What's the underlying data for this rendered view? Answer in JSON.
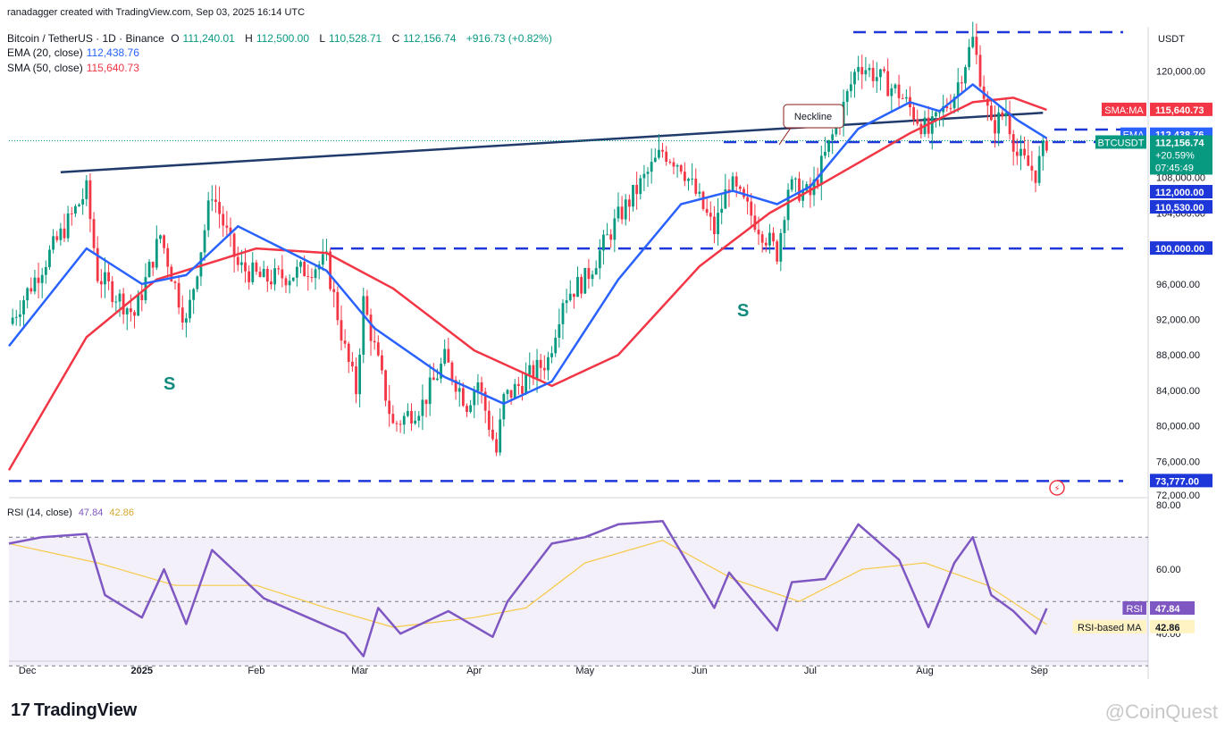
{
  "header": {
    "credit": "ranadagger created with TradingView.com, Sep 03, 2025 16:14 UTC",
    "symbol": "Bitcoin / TetherUS · 1D · Binance",
    "open_label": "O",
    "open": "111,240.01",
    "high_label": "H",
    "high": "112,500.00",
    "low_label": "L",
    "low": "110,528.71",
    "close_label": "C",
    "close": "112,156.74",
    "change": "+916.73 (+0.82%)",
    "ema_label": "EMA (20, close)",
    "ema_value": "112,438.76",
    "sma_label": "SMA (50, close)",
    "sma_value": "115,640.73",
    "currency": "USDT"
  },
  "rsi_header": {
    "label": "RSI (14, close)",
    "rsi": "47.84",
    "ma": "42.86"
  },
  "colors": {
    "up": "#089981",
    "down": "#f23645",
    "ema": "#2962ff",
    "sma": "#f23645",
    "rsi": "#7e57c2",
    "rsi_ma": "#f7c948",
    "line": "#1f3a6b",
    "dash": "#1d37d8"
  },
  "price_tags": [
    {
      "label": "SMA:MA",
      "value": "115,640.73",
      "color": "#f23645"
    },
    {
      "label": "EMA",
      "value": "112,438.76",
      "color": "#2962ff"
    },
    {
      "label": "BTCUSDT",
      "value": "112,156.74",
      "extra1": "+20.59%",
      "extra2": "07:45:49",
      "color": "#089981"
    },
    {
      "label": "",
      "value": "112,000.00",
      "color": "#1d37d8"
    },
    {
      "label": "",
      "value": "110,530.00",
      "color": "#1d37d8"
    },
    {
      "label": "",
      "value": "100,000.00",
      "color": "#1d37d8"
    },
    {
      "label": "",
      "value": "73,777.00",
      "color": "#1d37d8"
    }
  ],
  "rsi_tags": [
    {
      "label": "RSI",
      "value": "47.84",
      "color": "#7e57c2"
    },
    {
      "label": "RSI-based MA",
      "value": "42.86",
      "color": "#f7c948"
    }
  ],
  "annotations": {
    "neckline": "Neckline",
    "s_left": "S",
    "s_right": "S"
  },
  "footer": {
    "brand": "TradingView",
    "watermark": "@CoinQuest"
  },
  "chart_data": {
    "type": "candlestick",
    "title": "Bitcoin / TetherUS · 1D · Binance",
    "y_ticks": [
      76000,
      80000,
      84000,
      88000,
      92000,
      96000,
      100000,
      104000,
      108000,
      112000,
      116000,
      120000
    ],
    "y_tick_labels": [
      "76,000.00",
      "80,000.00",
      "84,000.00",
      "88,000.00",
      "92,000.00",
      "96,000.00",
      "100,000.00",
      "104,000.00",
      "108,000.00",
      "112,000.00",
      "116,000.00",
      "120,000.00"
    ],
    "y_range": [
      72000,
      125000
    ],
    "x_ticks": [
      "Dec",
      "2025",
      "Feb",
      "Mar",
      "Apr",
      "May",
      "Jun",
      "Jul",
      "Aug",
      "Sep"
    ],
    "x_range": [
      "2024-11-26",
      "2025-09-30"
    ],
    "tick_dates": [
      "2024-12-01",
      "2025-01-01",
      "2025-02-01",
      "2025-03-01",
      "2025-04-01",
      "2025-05-01",
      "2025-06-01",
      "2025-07-01",
      "2025-08-01",
      "2025-09-01"
    ],
    "horizontal_levels": [
      124400,
      112000,
      110530,
      100000,
      73777
    ],
    "neckline": {
      "start": [
        "2024-12-10",
        108600
      ],
      "end": [
        "2025-09-02",
        115300
      ]
    },
    "price_path": [
      [
        "2024-11-26",
        91500
      ],
      [
        "2024-12-05",
        98000
      ],
      [
        "2024-12-17",
        106500
      ],
      [
        "2024-12-20",
        97000
      ],
      [
        "2024-12-30",
        92500
      ],
      [
        "2025-01-06",
        101500
      ],
      [
        "2025-01-13",
        91500
      ],
      [
        "2025-01-20",
        106500
      ],
      [
        "2025-01-22",
        104000
      ],
      [
        "2025-01-27",
        98000
      ],
      [
        "2025-02-03",
        96500
      ],
      [
        "2025-02-10",
        97000
      ],
      [
        "2025-02-20",
        98500
      ],
      [
        "2025-02-25",
        88500
      ],
      [
        "2025-02-28",
        84000
      ],
      [
        "2025-03-02",
        94000
      ],
      [
        "2025-03-10",
        80000
      ],
      [
        "2025-03-18",
        82500
      ],
      [
        "2025-03-24",
        87500
      ],
      [
        "2025-03-30",
        82500
      ],
      [
        "2025-04-02",
        85000
      ],
      [
        "2025-04-07",
        77000
      ],
      [
        "2025-04-09",
        83000
      ],
      [
        "2025-04-21",
        87500
      ],
      [
        "2025-04-25",
        94500
      ],
      [
        "2025-05-01",
        96500
      ],
      [
        "2025-05-10",
        103500
      ],
      [
        "2025-05-22",
        111000
      ],
      [
        "2025-05-27",
        109500
      ],
      [
        "2025-06-05",
        102000
      ],
      [
        "2025-06-09",
        107500
      ],
      [
        "2025-06-13",
        105000
      ],
      [
        "2025-06-22",
        99500
      ],
      [
        "2025-06-25",
        107000
      ],
      [
        "2025-07-01",
        106000
      ],
      [
        "2025-07-10",
        116000
      ],
      [
        "2025-07-14",
        121000
      ],
      [
        "2025-07-25",
        117500
      ],
      [
        "2025-08-02",
        113000
      ],
      [
        "2025-08-09",
        117500
      ],
      [
        "2025-08-14",
        123500
      ],
      [
        "2025-08-19",
        113500
      ],
      [
        "2025-08-23",
        115500
      ],
      [
        "2025-08-26",
        110500
      ],
      [
        "2025-08-31",
        108500
      ],
      [
        "2025-09-03",
        112156
      ]
    ],
    "ema_path": [
      [
        "2024-11-26",
        89000
      ],
      [
        "2024-12-17",
        100000
      ],
      [
        "2025-01-01",
        96000
      ],
      [
        "2025-01-13",
        97000
      ],
      [
        "2025-01-27",
        102500
      ],
      [
        "2025-02-20",
        97500
      ],
      [
        "2025-03-05",
        91000
      ],
      [
        "2025-03-24",
        85500
      ],
      [
        "2025-04-09",
        82500
      ],
      [
        "2025-04-22",
        85000
      ],
      [
        "2025-05-10",
        96500
      ],
      [
        "2025-05-27",
        105000
      ],
      [
        "2025-06-10",
        106500
      ],
      [
        "2025-06-22",
        105000
      ],
      [
        "2025-07-01",
        107000
      ],
      [
        "2025-07-14",
        113500
      ],
      [
        "2025-07-28",
        116500
      ],
      [
        "2025-08-05",
        115500
      ],
      [
        "2025-08-14",
        118500
      ],
      [
        "2025-08-26",
        114500
      ],
      [
        "2025-09-03",
        112438
      ]
    ],
    "sma_path": [
      [
        "2024-11-26",
        75000
      ],
      [
        "2024-12-17",
        90000
      ],
      [
        "2025-01-05",
        96500
      ],
      [
        "2025-02-01",
        100000
      ],
      [
        "2025-02-20",
        99500
      ],
      [
        "2025-03-10",
        95500
      ],
      [
        "2025-04-01",
        88500
      ],
      [
        "2025-04-22",
        84500
      ],
      [
        "2025-05-10",
        88000
      ],
      [
        "2025-06-01",
        98000
      ],
      [
        "2025-06-20",
        104000
      ],
      [
        "2025-07-05",
        107500
      ],
      [
        "2025-07-28",
        113000
      ],
      [
        "2025-08-14",
        116500
      ],
      [
        "2025-08-25",
        117000
      ],
      [
        "2025-09-03",
        115640
      ]
    ],
    "rsi": {
      "label": "RSI (14, close)",
      "y_ticks": [
        40,
        60,
        80
      ],
      "y_range": [
        32,
        82
      ],
      "bands": [
        70,
        50,
        30
      ],
      "rsi_path": [
        [
          "2024-11-26",
          68
        ],
        [
          "2024-12-05",
          70
        ],
        [
          "2024-12-17",
          71
        ],
        [
          "2024-12-22",
          52
        ],
        [
          "2025-01-01",
          45
        ],
        [
          "2025-01-07",
          60
        ],
        [
          "2025-01-13",
          43
        ],
        [
          "2025-01-20",
          66
        ],
        [
          "2025-02-03",
          51
        ],
        [
          "2025-02-15",
          45
        ],
        [
          "2025-02-25",
          40
        ],
        [
          "2025-03-02",
          33
        ],
        [
          "2025-03-06",
          48
        ],
        [
          "2025-03-12",
          40
        ],
        [
          "2025-03-25",
          47
        ],
        [
          "2025-04-06",
          39
        ],
        [
          "2025-04-10",
          50
        ],
        [
          "2025-04-22",
          68
        ],
        [
          "2025-05-01",
          70
        ],
        [
          "2025-05-10",
          74
        ],
        [
          "2025-05-22",
          75
        ],
        [
          "2025-06-05",
          48
        ],
        [
          "2025-06-09",
          59
        ],
        [
          "2025-06-22",
          41
        ],
        [
          "2025-06-26",
          56
        ],
        [
          "2025-07-05",
          57
        ],
        [
          "2025-07-14",
          74
        ],
        [
          "2025-07-25",
          63
        ],
        [
          "2025-08-02",
          42
        ],
        [
          "2025-08-09",
          62
        ],
        [
          "2025-08-14",
          70
        ],
        [
          "2025-08-19",
          52
        ],
        [
          "2025-08-25",
          47
        ],
        [
          "2025-08-31",
          40
        ],
        [
          "2025-09-03",
          47.84
        ]
      ],
      "ma_path": [
        [
          "2024-11-26",
          68
        ],
        [
          "2024-12-20",
          62
        ],
        [
          "2025-01-10",
          55
        ],
        [
          "2025-02-01",
          55
        ],
        [
          "2025-02-20",
          48
        ],
        [
          "2025-03-10",
          42
        ],
        [
          "2025-04-01",
          45
        ],
        [
          "2025-04-15",
          48
        ],
        [
          "2025-05-01",
          62
        ],
        [
          "2025-05-22",
          69
        ],
        [
          "2025-06-10",
          57
        ],
        [
          "2025-06-28",
          50
        ],
        [
          "2025-07-15",
          60
        ],
        [
          "2025-08-01",
          62
        ],
        [
          "2025-08-18",
          55
        ],
        [
          "2025-09-03",
          42.86
        ]
      ]
    }
  }
}
